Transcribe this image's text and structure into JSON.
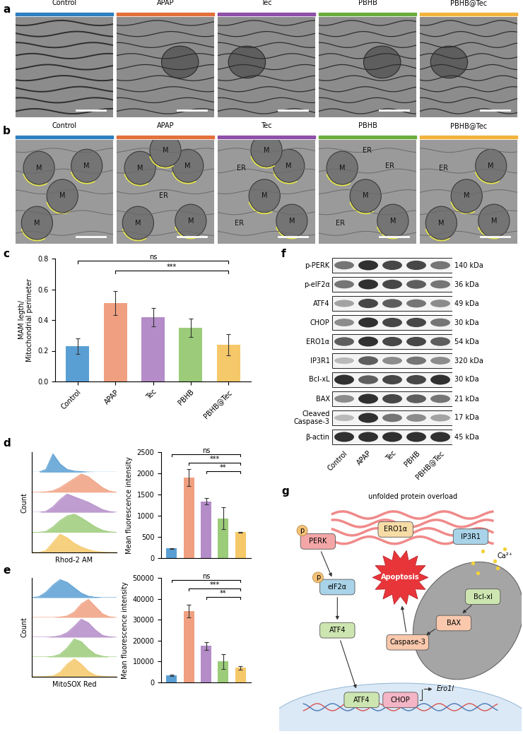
{
  "panel_letters": [
    "a",
    "b",
    "c",
    "d",
    "e",
    "f",
    "g"
  ],
  "groups": [
    {
      "name": "Control",
      "color": "#2e7fc0"
    },
    {
      "name": "APAP",
      "color": "#e2703a"
    },
    {
      "name": "Tec",
      "color": "#8e4fa8"
    },
    {
      "name": "PBHB",
      "color": "#6aad3c"
    },
    {
      "name": "PBHB@Tec",
      "color": "#f2b33d"
    }
  ],
  "tem_b_labels": [
    [
      "M",
      "M",
      "M",
      "M"
    ],
    [
      "M",
      "M",
      "ER",
      "M",
      "M",
      "M"
    ],
    [
      "ER",
      "M",
      "M",
      "ER",
      "M",
      "M"
    ],
    [
      "M",
      "ER",
      "M",
      "ER",
      "M",
      "ER"
    ],
    [
      "ER",
      "M",
      "M",
      "M",
      "M"
    ]
  ],
  "chart_data": [
    {
      "type": "bar",
      "categories": [
        "Control",
        "APAP",
        "Tec",
        "PBHB",
        "PBHB@Tec"
      ],
      "values": [
        0.23,
        0.51,
        0.42,
        0.35,
        0.24
      ],
      "errors": [
        0.05,
        0.08,
        0.06,
        0.06,
        0.07
      ],
      "colors": [
        "#5a9fd4",
        "#f0a080",
        "#b48cc8",
        "#9ccc7a",
        "#f5c869"
      ],
      "y_label": "MAM legth/\nMitochondrial perimeter",
      "ylim": [
        0,
        0.8
      ],
      "yticks": [
        {
          "value": 0,
          "label": "0.0"
        },
        {
          "value": 0.2,
          "label": "0.2"
        },
        {
          "value": 0.4,
          "label": "0.4"
        },
        {
          "value": 0.6,
          "label": "0.6"
        },
        {
          "value": 0.8,
          "label": "0.8"
        }
      ],
      "tick_labels": true,
      "annotations": [
        {
          "text": "ns",
          "from": "Control",
          "to": "PBHB@Tec"
        },
        {
          "text": "***",
          "from": "APAP",
          "to": "PBHB@Tec"
        }
      ]
    },
    {
      "type": "area",
      "x_label": "Rhod-2 AM",
      "y_label": "Count",
      "x": [
        0,
        1,
        2,
        3,
        4,
        5,
        6,
        7,
        8,
        9,
        10,
        11,
        12
      ],
      "xlim": [
        0,
        12
      ],
      "ylim": [
        0,
        1.1
      ],
      "tick_labels": false,
      "series": [
        {
          "color": "#5a9fd4",
          "values": [
            0,
            0,
            0.15,
            1.0,
            0.45,
            0.15,
            0.06,
            0.03,
            0.01,
            0,
            0,
            0,
            0
          ]
        },
        {
          "color": "#f0a080",
          "values": [
            0,
            0,
            0.02,
            0.08,
            0.25,
            0.5,
            0.75,
            1.0,
            0.85,
            0.55,
            0.25,
            0.06,
            0
          ]
        },
        {
          "color": "#b48cc8",
          "values": [
            0,
            0,
            0.05,
            0.3,
            0.7,
            1.0,
            0.85,
            0.7,
            0.55,
            0.35,
            0.15,
            0.04,
            0
          ]
        },
        {
          "color": "#9ccc7a",
          "values": [
            0,
            0,
            0.05,
            0.3,
            0.65,
            0.9,
            1.0,
            0.8,
            0.55,
            0.3,
            0.12,
            0.03,
            0
          ]
        },
        {
          "color": "#f5c869",
          "values": [
            0,
            0,
            0.1,
            0.55,
            1.0,
            0.8,
            0.5,
            0.3,
            0.15,
            0.06,
            0.02,
            0,
            0
          ]
        }
      ]
    },
    {
      "type": "bar",
      "categories": [
        "Control",
        "APAP",
        "Tec",
        "PBHB",
        "PBHB@Tec"
      ],
      "values": [
        230,
        1900,
        1340,
        940,
        610
      ],
      "errors": [
        10,
        200,
        70,
        260,
        10
      ],
      "colors": [
        "#5a9fd4",
        "#f0a080",
        "#b48cc8",
        "#9ccc7a",
        "#f5c869"
      ],
      "y_label": "Mean fluorescence intensity",
      "ylim": [
        0,
        2500
      ],
      "yticks": [
        0,
        500,
        1000,
        1500,
        2000,
        2500
      ],
      "tick_labels": "y",
      "annotations": [
        {
          "text": "ns",
          "from": "Control",
          "to": "PBHB@Tec"
        },
        {
          "text": "***",
          "from": "APAP",
          "to": "PBHB@Tec"
        },
        {
          "text": "**",
          "from": "Tec",
          "to": "PBHB@Tec"
        }
      ]
    },
    {
      "type": "area",
      "x_label": "MitoSOX Red",
      "y_label": "Count",
      "x": [
        0,
        1,
        2,
        3,
        4,
        5,
        6,
        7,
        8,
        9,
        10,
        11,
        12
      ],
      "xlim": [
        0,
        12
      ],
      "ylim": [
        0,
        1.1
      ],
      "tick_labels": false,
      "series": [
        {
          "color": "#5a9fd4",
          "values": [
            0,
            0.05,
            0.3,
            0.7,
            1.0,
            0.85,
            0.55,
            0.25,
            0.08,
            0.02,
            0,
            0,
            0
          ]
        },
        {
          "color": "#f0a080",
          "values": [
            0,
            0,
            0,
            0,
            0.02,
            0.08,
            0.3,
            0.75,
            1.0,
            0.6,
            0.2,
            0.03,
            0
          ]
        },
        {
          "color": "#b48cc8",
          "values": [
            0,
            0,
            0,
            0.02,
            0.08,
            0.25,
            0.6,
            1.0,
            0.8,
            0.4,
            0.1,
            0.02,
            0
          ]
        },
        {
          "color": "#9ccc7a",
          "values": [
            0,
            0,
            0,
            0.03,
            0.15,
            0.5,
            1.0,
            0.85,
            0.45,
            0.15,
            0.04,
            0,
            0
          ]
        },
        {
          "color": "#f5c869",
          "values": [
            0,
            0,
            0.01,
            0.05,
            0.25,
            0.7,
            1.0,
            0.7,
            0.3,
            0.08,
            0.02,
            0,
            0
          ]
        }
      ]
    },
    {
      "type": "bar",
      "categories": [
        "Control",
        "APAP",
        "Tec",
        "PBHB",
        "PBHB@Tec"
      ],
      "values": [
        3500,
        34000,
        17500,
        10000,
        7000
      ],
      "errors": [
        300,
        3000,
        1800,
        3500,
        800
      ],
      "colors": [
        "#5a9fd4",
        "#f0a080",
        "#b48cc8",
        "#9ccc7a",
        "#f5c869"
      ],
      "y_label": "Mean fluorescence intensity",
      "ylim": [
        0,
        50000
      ],
      "yticks": [
        0,
        10000,
        20000,
        30000,
        40000,
        50000
      ],
      "tick_labels": "y",
      "annotations": [
        {
          "text": "ns",
          "from": "Control",
          "to": "PBHB@Tec"
        },
        {
          "text": "***",
          "from": "APAP",
          "to": "PBHB@Tec"
        },
        {
          "text": "**",
          "from": "Tec",
          "to": "PBHB@Tec"
        }
      ]
    }
  ],
  "blot": {
    "lanes": [
      "Control",
      "APAP",
      "Tec",
      "PBHB",
      "PBHB@Tec"
    ],
    "rows": [
      {
        "protein": "p-PERK",
        "size": "140 kDa",
        "intensity": [
          0.6,
          0.9,
          0.8,
          0.8,
          0.6
        ]
      },
      {
        "protein": "p-eIF2α",
        "size": "36 kDa",
        "intensity": [
          0.6,
          0.9,
          0.8,
          0.7,
          0.6
        ]
      },
      {
        "protein": "ATF4",
        "size": "49 kDa",
        "intensity": [
          0.4,
          0.8,
          0.7,
          0.6,
          0.5
        ]
      },
      {
        "protein": "CHOP",
        "size": "30 kDa",
        "intensity": [
          0.5,
          0.9,
          0.8,
          0.8,
          0.6
        ]
      },
      {
        "protein": "ERO1α",
        "size": "54 kDa",
        "intensity": [
          0.7,
          0.9,
          0.8,
          0.8,
          0.7
        ]
      },
      {
        "protein": "IP3R1",
        "size": "320 kDa",
        "intensity": [
          0.3,
          0.7,
          0.5,
          0.6,
          0.5
        ]
      },
      {
        "protein": "Bcl-xL",
        "size": "30 kDa",
        "intensity": [
          0.9,
          0.7,
          0.8,
          0.8,
          0.9
        ]
      },
      {
        "protein": "BAX",
        "size": "21 kDa",
        "intensity": [
          0.5,
          0.9,
          0.8,
          0.7,
          0.6
        ]
      },
      {
        "protein": "Cleaved\nCaspase-3",
        "size": "17 kDa",
        "intensity": [
          0.3,
          0.9,
          0.6,
          0.5,
          0.4
        ]
      },
      {
        "protein": "β-actin",
        "size": "45 kDa",
        "intensity": [
          0.9,
          0.9,
          0.9,
          0.9,
          0.9
        ]
      }
    ]
  },
  "diagram": {
    "er_label": "unfolded protein overload",
    "phospho": "p",
    "perk": "PERK",
    "ero1": "ERO1α",
    "ip3r1": "IP3R1",
    "calcium": "Ca²⁺",
    "apoptosis": "Apoptosis",
    "eif2a": "eIF2α",
    "atf4": "ATF4",
    "bclxl": "Bcl-xl",
    "bax": "BAX",
    "caspase3": "Caspase-3",
    "nuclear_factors": [
      "ATF4",
      "CHOP"
    ],
    "gene": "Ero1l"
  }
}
